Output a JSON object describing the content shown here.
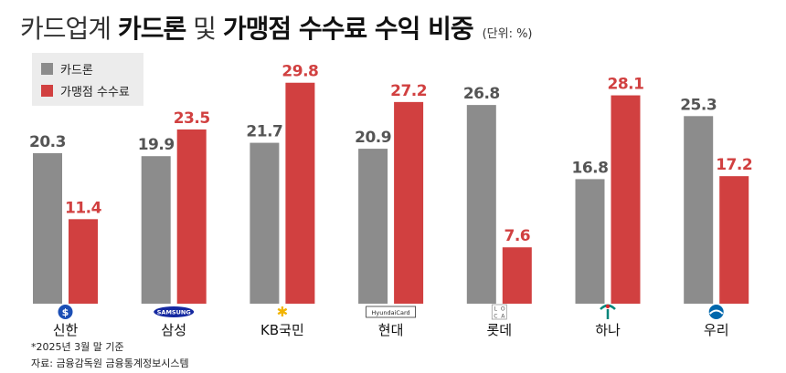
{
  "title": {
    "light": "카드업계",
    "bold1": "카드론",
    "mid": "및",
    "bold2": "가맹점 수수료 수익 비중",
    "unit": "(단위: %)"
  },
  "legend": [
    {
      "label": "카드론",
      "color": "#8c8c8c"
    },
    {
      "label": "가맹점 수수료",
      "color": "#d14040"
    }
  ],
  "chart_data": {
    "type": "bar",
    "categories": [
      "신한",
      "삼성",
      "KB국민",
      "현대",
      "롯데",
      "하나",
      "우리"
    ],
    "series": [
      {
        "name": "카드론",
        "values": [
          20.3,
          19.9,
          21.7,
          20.9,
          26.8,
          16.8,
          25.3
        ],
        "color": "#8c8c8c"
      },
      {
        "name": "가맹점 수수료",
        "values": [
          11.4,
          23.5,
          29.8,
          27.2,
          7.6,
          28.1,
          17.2
        ],
        "color": "#d14040"
      }
    ],
    "ylim": [
      0,
      31
    ],
    "grid": false,
    "legend_position": "top-left"
  },
  "logos": [
    {
      "company": "신한",
      "icon": "shinhan-logo",
      "text": ""
    },
    {
      "company": "삼성",
      "icon": "samsung-logo",
      "text": "SAMSUNG"
    },
    {
      "company": "KB국민",
      "icon": "kb-star-logo",
      "text": ""
    },
    {
      "company": "현대",
      "icon": "hyundai-card-logo",
      "text": "HyundaiCard"
    },
    {
      "company": "롯데",
      "icon": "loca-logo",
      "text": "LOCA"
    },
    {
      "company": "하나",
      "icon": "hana-logo",
      "text": ""
    },
    {
      "company": "우리",
      "icon": "woori-logo",
      "text": ""
    }
  ],
  "footnotes": {
    "date": "*2025년 3월 말 기준",
    "source": "자료: 금융감독원 금융통계정보시스템"
  }
}
